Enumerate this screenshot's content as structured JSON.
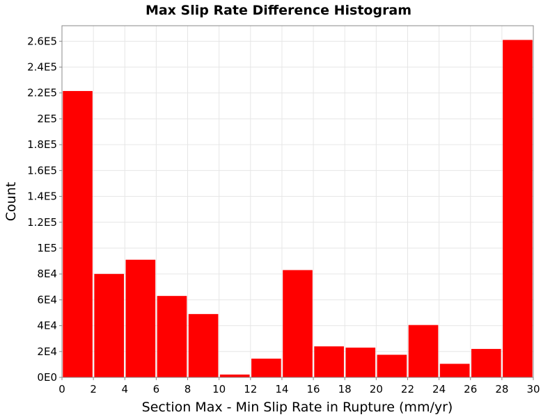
{
  "chart_data": {
    "type": "bar",
    "title": "Max Slip Rate Difference Histogram",
    "xlabel": "Section Max - Min Slip Rate in Rupture (mm/yr)",
    "ylabel": "Count",
    "xlim": [
      0,
      30
    ],
    "ylim": [
      0,
      272000
    ],
    "bin_width": 2,
    "bar_color": "#ff0000",
    "grid": true,
    "x_ticks": [
      0,
      2,
      4,
      6,
      8,
      10,
      12,
      14,
      16,
      18,
      20,
      22,
      24,
      26,
      28,
      30
    ],
    "y_ticks": [
      {
        "value": 0,
        "label": "0E0"
      },
      {
        "value": 20000,
        "label": "2E4"
      },
      {
        "value": 40000,
        "label": "4E4"
      },
      {
        "value": 60000,
        "label": "6E4"
      },
      {
        "value": 80000,
        "label": "8E4"
      },
      {
        "value": 100000,
        "label": "1E5"
      },
      {
        "value": 120000,
        "label": "1.2E5"
      },
      {
        "value": 140000,
        "label": "1.4E5"
      },
      {
        "value": 160000,
        "label": "1.6E5"
      },
      {
        "value": 180000,
        "label": "1.8E5"
      },
      {
        "value": 200000,
        "label": "2E5"
      },
      {
        "value": 220000,
        "label": "2.2E5"
      },
      {
        "value": 240000,
        "label": "2.4E5"
      },
      {
        "value": 260000,
        "label": "2.6E5"
      }
    ],
    "bins": [
      {
        "x_start": 0,
        "x_end": 2,
        "value": 221500
      },
      {
        "x_start": 2,
        "x_end": 4,
        "value": 80000
      },
      {
        "x_start": 4,
        "x_end": 6,
        "value": 91000
      },
      {
        "x_start": 6,
        "x_end": 8,
        "value": 63000
      },
      {
        "x_start": 8,
        "x_end": 10,
        "value": 49000
      },
      {
        "x_start": 10,
        "x_end": 12,
        "value": 2200
      },
      {
        "x_start": 12,
        "x_end": 14,
        "value": 14500
      },
      {
        "x_start": 14,
        "x_end": 16,
        "value": 83000
      },
      {
        "x_start": 16,
        "x_end": 18,
        "value": 24000
      },
      {
        "x_start": 18,
        "x_end": 20,
        "value": 23000
      },
      {
        "x_start": 20,
        "x_end": 22,
        "value": 17500
      },
      {
        "x_start": 22,
        "x_end": 24,
        "value": 40500
      },
      {
        "x_start": 24,
        "x_end": 26,
        "value": 10500
      },
      {
        "x_start": 26,
        "x_end": 28,
        "value": 22000
      },
      {
        "x_start": 28,
        "x_end": 30,
        "value": 261000
      }
    ]
  }
}
